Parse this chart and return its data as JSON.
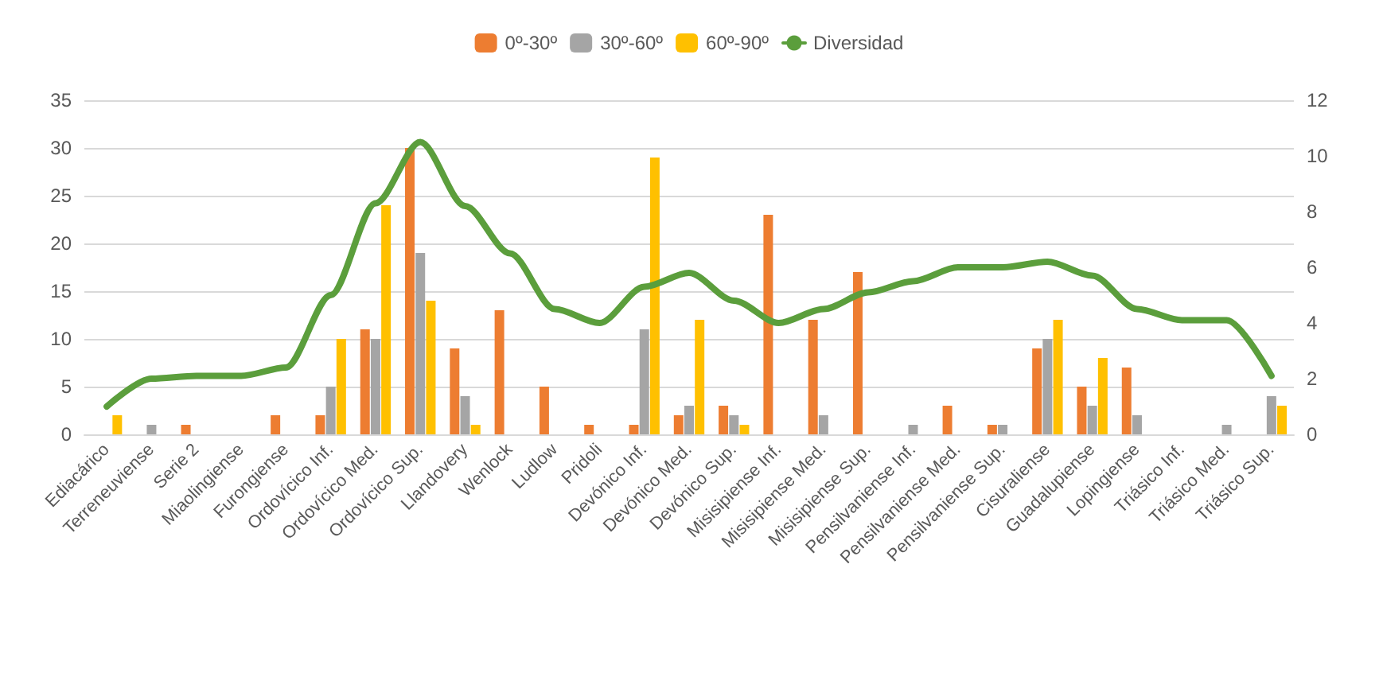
{
  "chart_data": {
    "type": "bar",
    "categories": [
      "Ediacárico",
      "Terreneuviense",
      "Serie 2",
      "Miaolingiense",
      "Furongiense",
      "Ordovícico Inf.",
      "Ordovícico Med.",
      "Ordovícico Sup.",
      "Llandovery",
      "Wenlock",
      "Ludlow",
      "Pridoli",
      "Devónico Inf.",
      "Devónico Med.",
      "Devónico Sup.",
      "Misisipiense Inf.",
      "Misisipiense Med.",
      "Misisipiense Sup.",
      "Pensilvaniense Inf.",
      "Pensilvaniense Med.",
      "Pensilvaniense Sup.",
      "Cisuraliense",
      "Guadalupiense",
      "Lopingiense",
      "Triásico Inf.",
      "Triásico Med.",
      "Triásico Sup."
    ],
    "series": [
      {
        "name": "0º-30º",
        "color": "#ed7d31",
        "values": [
          0,
          0,
          1,
          0,
          2,
          2,
          11,
          30,
          9,
          13,
          5,
          1,
          1,
          2,
          3,
          23,
          12,
          17,
          0,
          3,
          1,
          9,
          5,
          7,
          0,
          0,
          0
        ]
      },
      {
        "name": "30º-60º",
        "color": "#a5a5a5",
        "values": [
          0,
          1,
          0,
          0,
          0,
          5,
          10,
          19,
          4,
          0,
          0,
          0,
          11,
          3,
          2,
          0,
          2,
          0,
          1,
          0,
          1,
          10,
          3,
          2,
          0,
          1,
          4
        ]
      },
      {
        "name": "60º-90º",
        "color": "#ffc000",
        "values": [
          2,
          0,
          0,
          0,
          0,
          10,
          24,
          14,
          1,
          0,
          0,
          0,
          29,
          12,
          1,
          0,
          0,
          0,
          0,
          0,
          0,
          12,
          8,
          0,
          0,
          0,
          3
        ]
      },
      {
        "name": "Diversidad",
        "type": "line",
        "axis": "y2",
        "color": "#5b9e3c",
        "values": [
          1,
          2,
          2.1,
          2.1,
          2.4,
          5,
          8.3,
          10.5,
          8.2,
          6.5,
          4.5,
          4,
          5.3,
          5.8,
          4.8,
          4,
          4.5,
          5.1,
          5.5,
          6,
          6,
          6.2,
          5.7,
          4.5,
          4.1,
          4.1,
          2.1
        ]
      }
    ],
    "ylim": [
      0,
      35
    ],
    "yticks": [
      0,
      5,
      10,
      15,
      20,
      25,
      30,
      35
    ],
    "y2lim": [
      0,
      12
    ],
    "y2ticks": [
      0,
      2,
      4,
      6,
      8,
      10,
      12
    ],
    "grid": "y",
    "legend": "top",
    "marker": "none"
  }
}
